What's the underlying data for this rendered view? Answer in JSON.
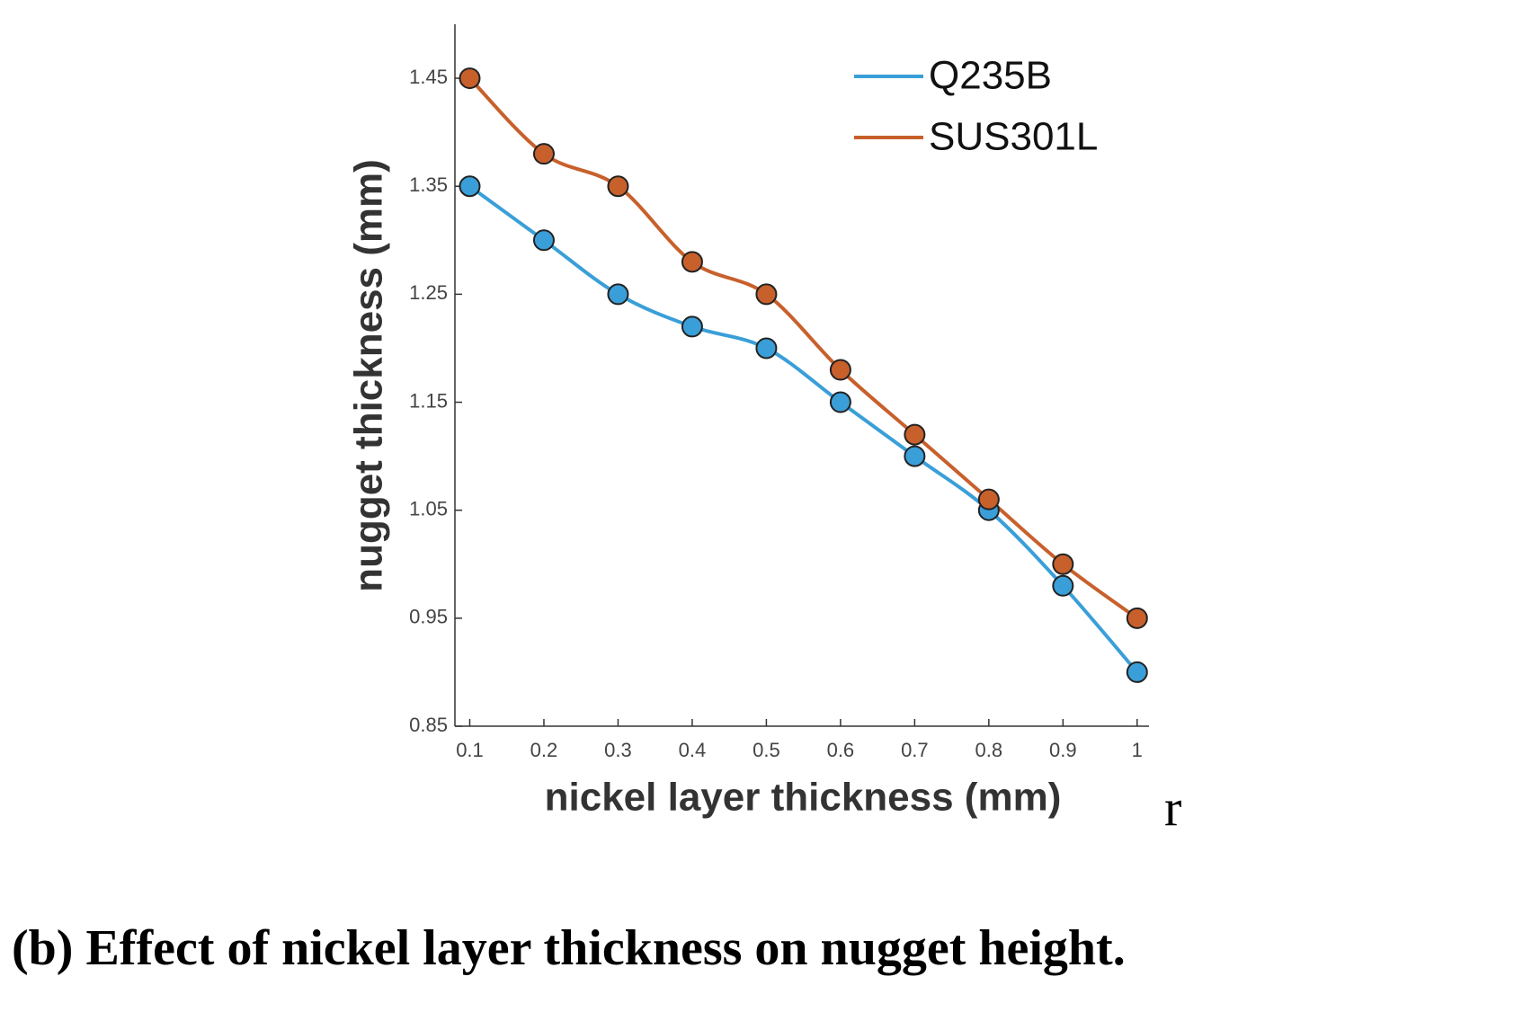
{
  "chart_data": {
    "type": "line",
    "xlabel": "nickel layer thickness (mm)",
    "ylabel": "nugget thickness (mm)",
    "annotation": "r",
    "caption": "(b) Effect of nickel layer thickness on nugget height.",
    "x": [
      0.1,
      0.2,
      0.3,
      0.4,
      0.5,
      0.6,
      0.7,
      0.8,
      0.9,
      1
    ],
    "series": [
      {
        "name": "Q235B",
        "color": "#3a9fd8",
        "values": [
          1.35,
          1.3,
          1.25,
          1.22,
          1.2,
          1.15,
          1.1,
          1.05,
          0.98,
          0.9
        ]
      },
      {
        "name": "SUS301L",
        "color": "#c8602c",
        "values": [
          1.45,
          1.38,
          1.35,
          1.28,
          1.25,
          1.18,
          1.12,
          1.06,
          1.0,
          0.95
        ]
      }
    ],
    "xlim": [
      0.08,
      1.016
    ],
    "ylim": [
      0.85,
      1.5
    ],
    "xticks": [
      0.1,
      0.2,
      0.3,
      0.4,
      0.5,
      0.6,
      0.7,
      0.8,
      0.9,
      1
    ],
    "yticks": [
      0.85,
      0.95,
      1.05,
      1.15,
      1.25,
      1.35,
      1.45
    ],
    "grid": false,
    "legend": "upper right"
  }
}
